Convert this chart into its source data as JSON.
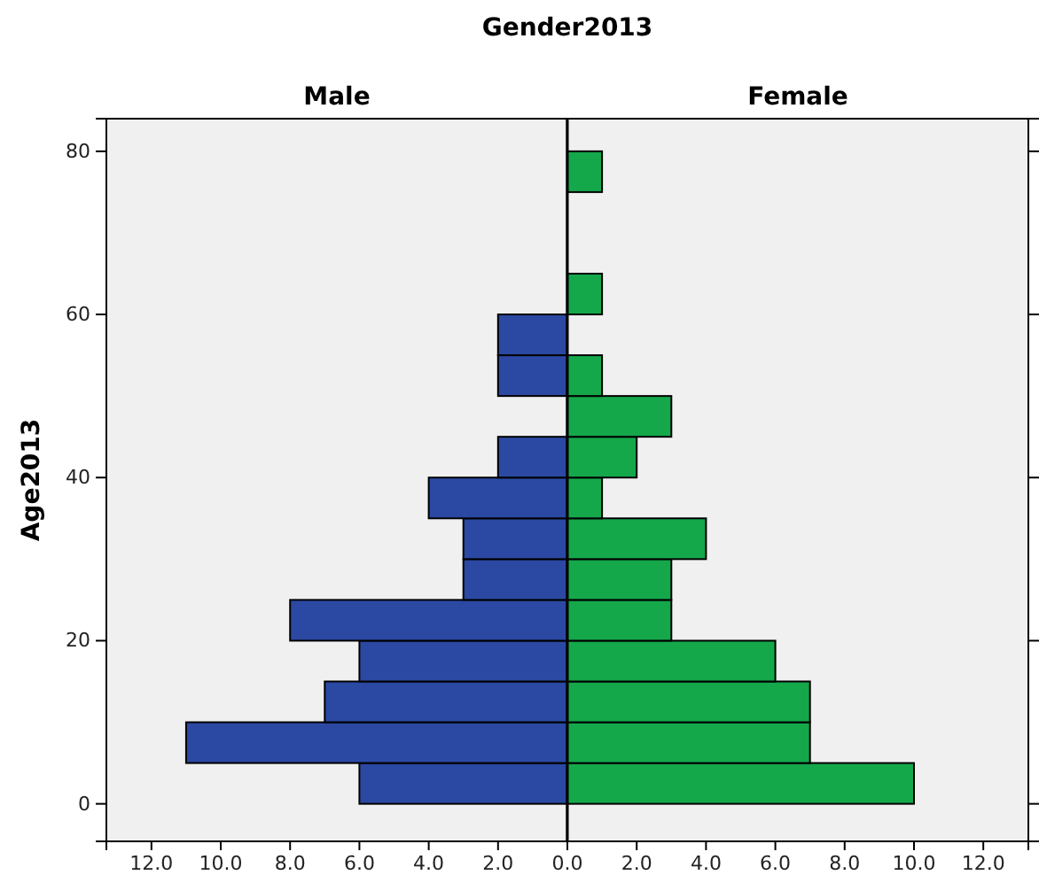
{
  "chart_data": [
    {
      "type": "histogram",
      "orientation": "horizontal",
      "title": "Gender2013",
      "subtitle": "Male",
      "ylabel": "Age2013",
      "color": "#2b49a3",
      "bins": [
        0,
        5,
        10,
        15,
        20,
        25,
        30,
        35,
        40,
        45,
        50,
        55,
        60,
        65,
        70,
        75,
        80
      ],
      "values": [
        6,
        11,
        7,
        6,
        8,
        3,
        3,
        4,
        2,
        0,
        2,
        2,
        0,
        0,
        0,
        0
      ],
      "xlim": [
        13.3,
        0
      ],
      "xticks": [
        {
          "value": 12,
          "label": "12.0"
        },
        {
          "value": 10,
          "label": "10.0"
        },
        {
          "value": 8,
          "label": "8.0"
        },
        {
          "value": 6,
          "label": "6.0"
        },
        {
          "value": 4,
          "label": "4.0"
        },
        {
          "value": 2,
          "label": "2.0"
        },
        {
          "value": 0,
          "label": null
        }
      ],
      "ylim": [
        -4.6,
        84
      ],
      "yticks": [
        0,
        20,
        40,
        60,
        80
      ],
      "grid": false
    },
    {
      "type": "histogram",
      "orientation": "horizontal",
      "subtitle": "Female",
      "color": "#14a84b",
      "bins": [
        0,
        5,
        10,
        15,
        20,
        25,
        30,
        35,
        40,
        45,
        50,
        55,
        60,
        65,
        70,
        75,
        80
      ],
      "values": [
        10,
        7,
        7,
        6,
        3,
        3,
        4,
        1,
        2,
        3,
        1,
        0,
        1,
        0,
        0,
        1
      ],
      "xlim": [
        0,
        13.3
      ],
      "xticks": [
        {
          "value": 0,
          "label": "0.0"
        },
        {
          "value": 2,
          "label": "2.0"
        },
        {
          "value": 4,
          "label": "4.0"
        },
        {
          "value": 6,
          "label": "6.0"
        },
        {
          "value": 8,
          "label": "8.0"
        },
        {
          "value": 10,
          "label": "10.0"
        },
        {
          "value": 12,
          "label": "12.0"
        }
      ],
      "ylim": [
        -4.6,
        84
      ],
      "yticks": [
        {
          "value": 0,
          "label": null
        },
        {
          "value": 20,
          "label": null
        },
        {
          "value": 40,
          "label": null
        },
        {
          "value": 60,
          "label": null
        },
        {
          "value": 80,
          "label": null
        }
      ],
      "tick_labels": "x",
      "grid": false
    }
  ]
}
